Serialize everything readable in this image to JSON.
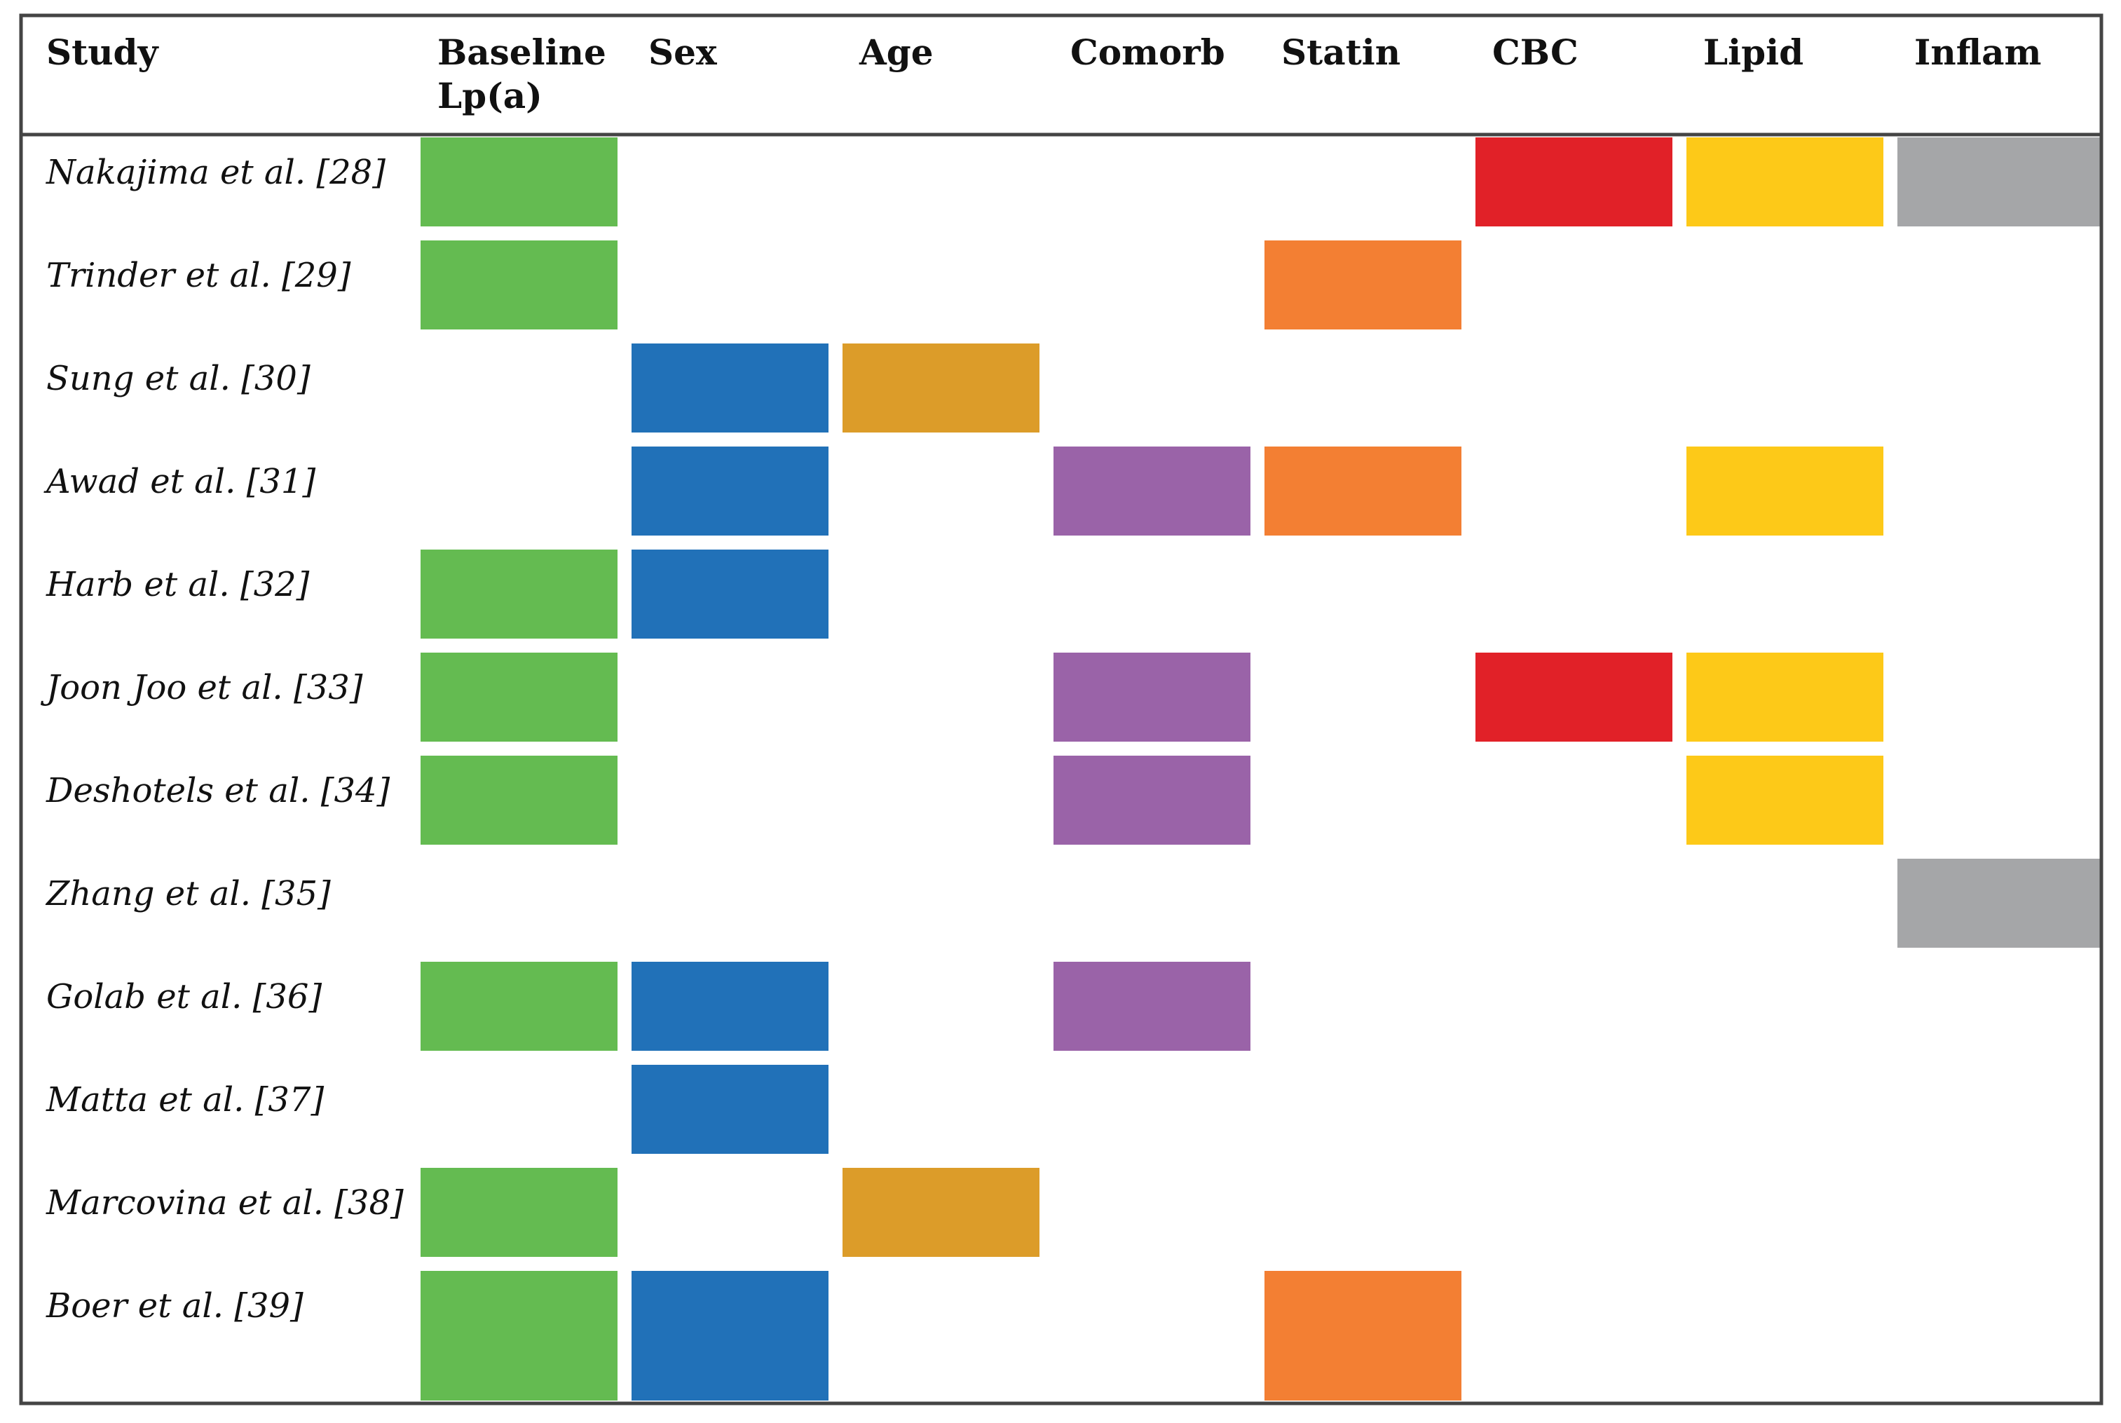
{
  "chart_data": {
    "type": "table",
    "columns": [
      {
        "key": "study",
        "label": "Study"
      },
      {
        "key": "baseline",
        "label_lines": [
          "Baseline",
          "Lp(a)"
        ],
        "color": "#64BB51"
      },
      {
        "key": "sex",
        "label_lines": [
          "Sex"
        ],
        "color": "#2171B8"
      },
      {
        "key": "age",
        "label_lines": [
          "Age"
        ],
        "color": "#DC9C29"
      },
      {
        "key": "comorb",
        "label_lines": [
          "Comorb"
        ],
        "color": "#9A63A8"
      },
      {
        "key": "statin",
        "label_lines": [
          "Statin"
        ],
        "color": "#F37F33"
      },
      {
        "key": "cbc",
        "label_lines": [
          "CBC"
        ],
        "color": "#E12128"
      },
      {
        "key": "lipid",
        "label_lines": [
          "Lipid"
        ],
        "color": "#FDC918"
      },
      {
        "key": "inflam",
        "label_lines": [
          "Inflam"
        ],
        "color": "#A5A6A8"
      }
    ],
    "rows": [
      {
        "study": "Nakajima  et al. [28]",
        "baseline": true,
        "sex": false,
        "age": false,
        "comorb": false,
        "statin": false,
        "cbc": true,
        "lipid": true,
        "inflam": true
      },
      {
        "study": "Trinder et al. [29]",
        "baseline": true,
        "sex": false,
        "age": false,
        "comorb": false,
        "statin": true,
        "cbc": false,
        "lipid": false,
        "inflam": false
      },
      {
        "study": "Sung et al. [30]",
        "baseline": false,
        "sex": true,
        "age": true,
        "comorb": false,
        "statin": false,
        "cbc": false,
        "lipid": false,
        "inflam": false
      },
      {
        "study": "Awad et al.  [31]",
        "baseline": false,
        "sex": true,
        "age": false,
        "comorb": true,
        "statin": true,
        "cbc": false,
        "lipid": true,
        "inflam": false
      },
      {
        "study": "Harb et al. [32]",
        "baseline": true,
        "sex": true,
        "age": false,
        "comorb": false,
        "statin": false,
        "cbc": false,
        "lipid": false,
        "inflam": false
      },
      {
        "study": "Joon Joo et al. [33]",
        "baseline": true,
        "sex": false,
        "age": false,
        "comorb": true,
        "statin": false,
        "cbc": true,
        "lipid": true,
        "inflam": false
      },
      {
        "study": "Deshotels et al. [34]",
        "baseline": true,
        "sex": false,
        "age": false,
        "comorb": true,
        "statin": false,
        "cbc": false,
        "lipid": true,
        "inflam": false
      },
      {
        "study": "Zhang et al.  [35]",
        "baseline": false,
        "sex": false,
        "age": false,
        "comorb": false,
        "statin": false,
        "cbc": false,
        "lipid": false,
        "inflam": true
      },
      {
        "study": "Golab et al. [36]",
        "baseline": true,
        "sex": true,
        "age": false,
        "comorb": true,
        "statin": false,
        "cbc": false,
        "lipid": false,
        "inflam": false
      },
      {
        "study": "Matta et al. [37]",
        "baseline": false,
        "sex": true,
        "age": false,
        "comorb": false,
        "statin": false,
        "cbc": false,
        "lipid": false,
        "inflam": false
      },
      {
        "study": "Marcovina et al. [38]",
        "baseline": true,
        "sex": false,
        "age": true,
        "comorb": false,
        "statin": false,
        "cbc": false,
        "lipid": false,
        "inflam": false
      },
      {
        "study": "Boer et al. [39]",
        "baseline": true,
        "sex": true,
        "age": false,
        "comorb": false,
        "statin": true,
        "cbc": false,
        "lipid": false,
        "inflam": false
      }
    ],
    "border_color": "#444444"
  }
}
